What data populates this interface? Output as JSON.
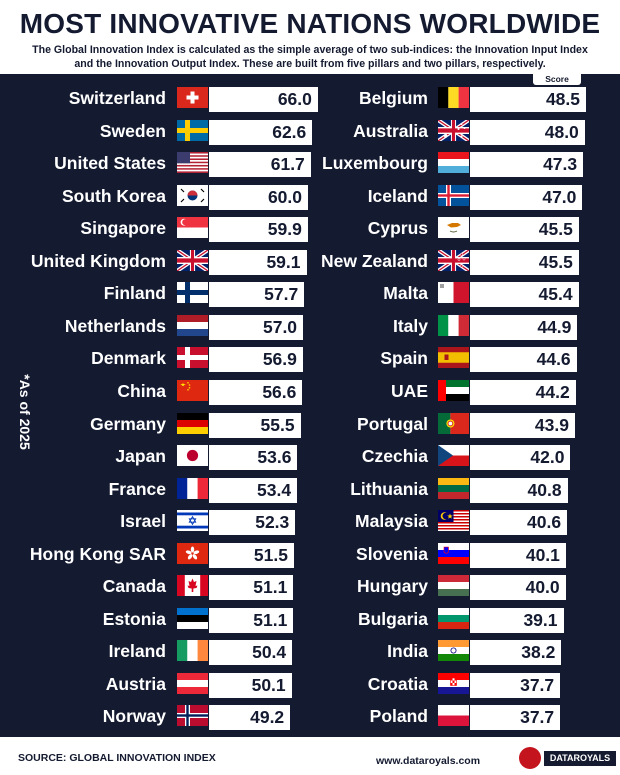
{
  "header": {
    "title": "MOST INNOVATIVE NATIONS WORLDWIDE",
    "subtitle": "The Global Innovation Index is calculated as the simple average of two sub-indices: the Innovation Input Index and the Innovation Output Index. These are built from five pillars and two pillars, respectively."
  },
  "score_label": "Score",
  "as_of": "*As of 2025",
  "footer": {
    "source": "SOURCE: GLOBAL INNOVATION INDEX",
    "url": "www.dataroyals.com",
    "logo": "DATAROYALS"
  },
  "chart_data": {
    "type": "bar",
    "title": "MOST INNOVATIVE NATIONS WORLDWIDE",
    "ylabel": "Score",
    "series": [
      {
        "categories": [
          "Switzerland",
          "Sweden",
          "United States",
          "South Korea",
          "Singapore",
          "United Kingdom",
          "Finland",
          "Netherlands",
          "Denmark",
          "China",
          "Germany",
          "Japan",
          "France",
          "Israel",
          "Hong Kong SAR",
          "Canada",
          "Estonia",
          "Ireland",
          "Austria",
          "Norway"
        ],
        "values": [
          66.0,
          62.6,
          61.7,
          60.0,
          59.9,
          59.1,
          57.7,
          57.0,
          56.9,
          56.6,
          55.5,
          53.6,
          53.4,
          52.3,
          51.5,
          51.1,
          51.1,
          50.4,
          50.1,
          49.2
        ],
        "flags": [
          "switzerland-flag-icon",
          "sweden-flag-icon",
          "united-states-flag-icon",
          "south-korea-flag-icon",
          "singapore-flag-icon",
          "united-kingdom-flag-icon",
          "finland-flag-icon",
          "netherlands-flag-icon",
          "denmark-flag-icon",
          "china-flag-icon",
          "germany-flag-icon",
          "japan-flag-icon",
          "france-flag-icon",
          "israel-flag-icon",
          "hong-kong-flag-icon",
          "canada-flag-icon",
          "estonia-flag-icon",
          "ireland-flag-icon",
          "austria-flag-icon",
          "norway-flag-icon"
        ]
      },
      {
        "categories": [
          "Belgium",
          "Australia",
          "Luxembourg",
          "Iceland",
          "Cyprus",
          "New Zealand",
          "Malta",
          "Italy",
          "Spain",
          "UAE",
          "Portugal",
          "Czechia",
          "Lithuania",
          "Malaysia",
          "Slovenia",
          "Hungary",
          "Bulgaria",
          "India",
          "Croatia",
          "Poland"
        ],
        "values": [
          48.5,
          48.0,
          47.3,
          47.0,
          45.5,
          45.5,
          45.4,
          44.9,
          44.6,
          44.2,
          43.9,
          42.0,
          40.8,
          40.6,
          40.1,
          40.0,
          39.1,
          38.2,
          37.7,
          37.7
        ],
        "flags": [
          "belgium-flag-icon",
          "australia-flag-icon",
          "luxembourg-flag-icon",
          "iceland-flag-icon",
          "cyprus-flag-icon",
          "new-zealand-flag-icon",
          "malta-flag-icon",
          "italy-flag-icon",
          "spain-flag-icon",
          "uae-flag-icon",
          "portugal-flag-icon",
          "czechia-flag-icon",
          "lithuania-flag-icon",
          "malaysia-flag-icon",
          "slovenia-flag-icon",
          "hungary-flag-icon",
          "bulgaria-flag-icon",
          "india-flag-icon",
          "croatia-flag-icon",
          "poland-flag-icon"
        ]
      }
    ]
  }
}
